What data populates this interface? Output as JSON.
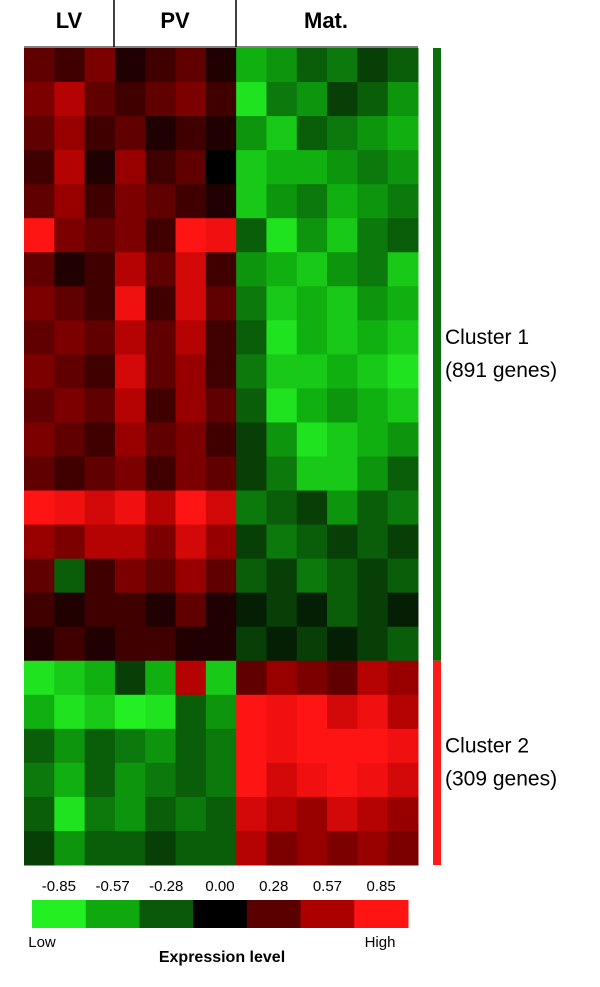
{
  "chart_data": {
    "type": "heatmap",
    "column_groups": [
      "LV",
      "PV",
      "Mat."
    ],
    "clusters": [
      {
        "name": "Cluster 1",
        "size": "(891 genes)",
        "color": "#0b6e0b",
        "values": [
          [
            0.3,
            0.2,
            0.4,
            0.1,
            0.2,
            0.3,
            0.1,
            -0.6,
            -0.5,
            -0.3,
            -0.4,
            -0.2,
            -0.3
          ],
          [
            0.4,
            0.6,
            0.3,
            0.2,
            0.3,
            0.4,
            0.2,
            -0.8,
            -0.4,
            -0.5,
            -0.2,
            -0.3,
            -0.5
          ],
          [
            0.3,
            0.5,
            0.2,
            0.3,
            0.1,
            0.2,
            0.1,
            -0.5,
            -0.7,
            -0.3,
            -0.4,
            -0.5,
            -0.6
          ],
          [
            0.2,
            0.6,
            0.1,
            0.5,
            0.2,
            0.3,
            0.0,
            -0.7,
            -0.6,
            -0.6,
            -0.5,
            -0.4,
            -0.5
          ],
          [
            0.3,
            0.5,
            0.2,
            0.4,
            0.3,
            0.2,
            0.1,
            -0.7,
            -0.5,
            -0.4,
            -0.6,
            -0.5,
            -0.4
          ],
          [
            0.9,
            0.4,
            0.3,
            0.4,
            0.2,
            0.9,
            0.8,
            -0.3,
            -0.8,
            -0.5,
            -0.7,
            -0.4,
            -0.3
          ],
          [
            0.3,
            0.1,
            0.2,
            0.6,
            0.3,
            0.7,
            0.2,
            -0.5,
            -0.6,
            -0.7,
            -0.5,
            -0.4,
            -0.7
          ],
          [
            0.4,
            0.3,
            0.2,
            0.8,
            0.2,
            0.7,
            0.3,
            -0.4,
            -0.7,
            -0.6,
            -0.7,
            -0.5,
            -0.6
          ],
          [
            0.3,
            0.4,
            0.3,
            0.6,
            0.3,
            0.6,
            0.2,
            -0.3,
            -0.8,
            -0.6,
            -0.7,
            -0.6,
            -0.7
          ],
          [
            0.4,
            0.3,
            0.2,
            0.7,
            0.3,
            0.5,
            0.2,
            -0.4,
            -0.7,
            -0.7,
            -0.6,
            -0.7,
            -0.8
          ],
          [
            0.3,
            0.4,
            0.3,
            0.6,
            0.2,
            0.5,
            0.3,
            -0.3,
            -0.8,
            -0.6,
            -0.5,
            -0.6,
            -0.7
          ],
          [
            0.4,
            0.3,
            0.2,
            0.5,
            0.3,
            0.4,
            0.2,
            -0.2,
            -0.5,
            -0.8,
            -0.7,
            -0.6,
            -0.5
          ],
          [
            0.3,
            0.2,
            0.3,
            0.4,
            0.2,
            0.4,
            0.3,
            -0.2,
            -0.4,
            -0.7,
            -0.7,
            -0.5,
            -0.3
          ],
          [
            0.9,
            0.8,
            0.7,
            0.8,
            0.6,
            0.9,
            0.7,
            -0.4,
            -0.3,
            -0.2,
            -0.5,
            -0.3,
            -0.4
          ],
          [
            0.5,
            0.4,
            0.6,
            0.6,
            0.4,
            0.7,
            0.5,
            -0.2,
            -0.4,
            -0.3,
            -0.2,
            -0.3,
            -0.2
          ],
          [
            0.3,
            -0.3,
            0.2,
            0.4,
            0.3,
            0.5,
            0.3,
            -0.3,
            -0.2,
            -0.4,
            -0.3,
            -0.2,
            -0.3
          ],
          [
            0.2,
            0.1,
            0.2,
            0.2,
            0.1,
            0.3,
            0.1,
            -0.1,
            -0.2,
            -0.1,
            -0.3,
            -0.2,
            -0.1
          ],
          [
            0.1,
            0.2,
            0.1,
            0.2,
            0.2,
            0.1,
            0.1,
            -0.2,
            -0.1,
            -0.2,
            -0.1,
            -0.2,
            -0.3
          ]
        ]
      },
      {
        "name": "Cluster 2",
        "size": "(309 genes)",
        "color": "#ff1a1a",
        "values": [
          [
            -0.8,
            -0.7,
            -0.6,
            -0.2,
            -0.6,
            0.6,
            -0.7,
            0.3,
            0.5,
            0.4,
            0.3,
            0.6,
            0.5
          ],
          [
            -0.6,
            -0.8,
            -0.7,
            -0.9,
            -0.8,
            -0.3,
            -0.5,
            0.9,
            0.8,
            0.9,
            0.7,
            0.8,
            0.6
          ],
          [
            -0.3,
            -0.5,
            -0.3,
            -0.4,
            -0.5,
            -0.3,
            -0.4,
            0.9,
            0.8,
            0.9,
            0.9,
            0.9,
            0.8
          ],
          [
            -0.4,
            -0.6,
            -0.3,
            -0.5,
            -0.4,
            -0.3,
            -0.4,
            0.9,
            0.7,
            0.8,
            0.9,
            0.8,
            0.7
          ],
          [
            -0.3,
            -0.8,
            -0.4,
            -0.5,
            -0.3,
            -0.4,
            -0.3,
            0.7,
            0.6,
            0.5,
            0.7,
            0.6,
            0.5
          ],
          [
            -0.2,
            -0.5,
            -0.3,
            -0.3,
            -0.2,
            -0.3,
            -0.3,
            0.6,
            0.4,
            0.5,
            0.4,
            0.5,
            0.4
          ]
        ]
      }
    ],
    "colorbar": {
      "ticks": [
        -0.85,
        -0.57,
        -0.28,
        {
          "value": 0,
          "label": "0.00"
        },
        0.28,
        0.57,
        0.85
      ],
      "colors": [
        "#22f022",
        "#0fa80f",
        "#0a580a",
        "#000000",
        "#5a0000",
        "#ac0000",
        "#ff1414"
      ],
      "low": "Low",
      "high": "High",
      "label": "Expression level"
    }
  }
}
